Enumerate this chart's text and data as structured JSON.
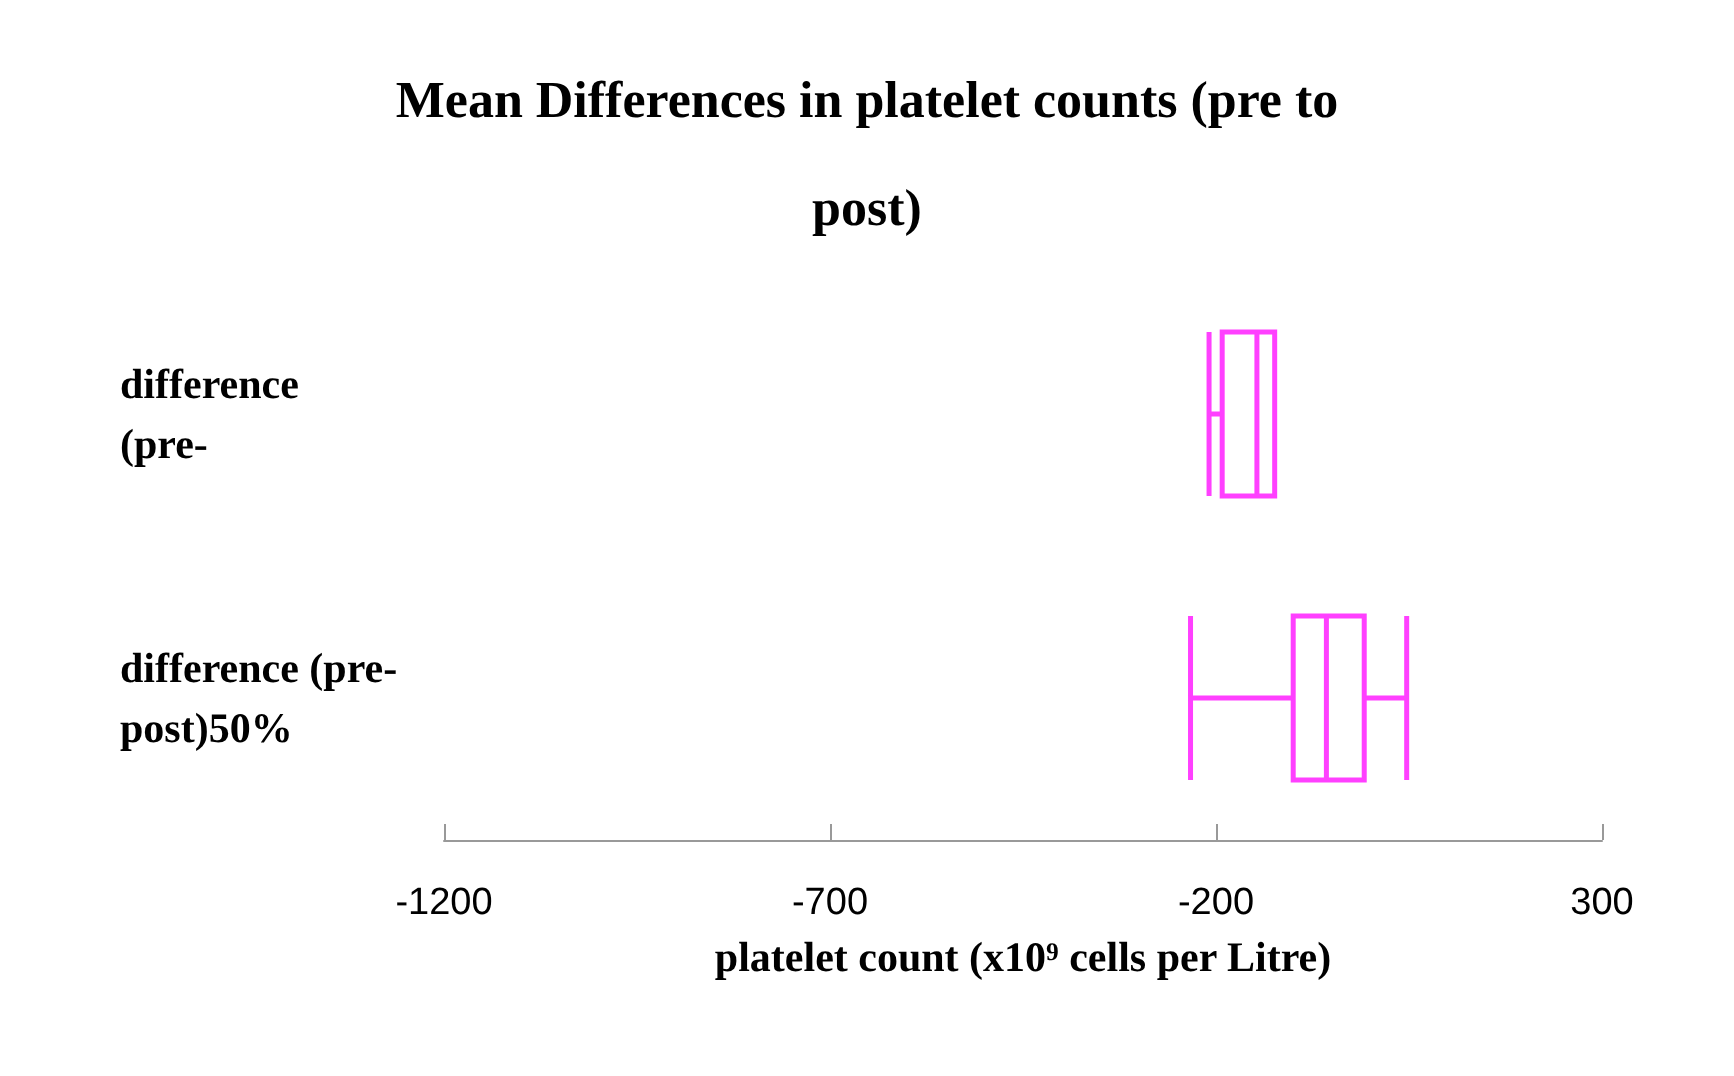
{
  "chart_data": {
    "type": "box",
    "orientation": "horizontal",
    "title": "Mean Differences in platelet counts (pre to\npost)",
    "xlabel": "platelet count (x10⁹ cells per Litre)",
    "categories": [
      "difference\n(pre-",
      "difference (pre-\npost)50%"
    ],
    "boxes": [
      {
        "low": -209,
        "q1": -192,
        "median": -147,
        "q3": -124,
        "high": -124
      },
      {
        "low": -233,
        "q1": -100,
        "median": -57,
        "q3": -8,
        "high": 47
      }
    ],
    "color": "#ff40ff",
    "xlim": [
      -1200,
      300
    ],
    "xticks": [
      -1200,
      -700,
      -200,
      300
    ],
    "grid": false
  }
}
